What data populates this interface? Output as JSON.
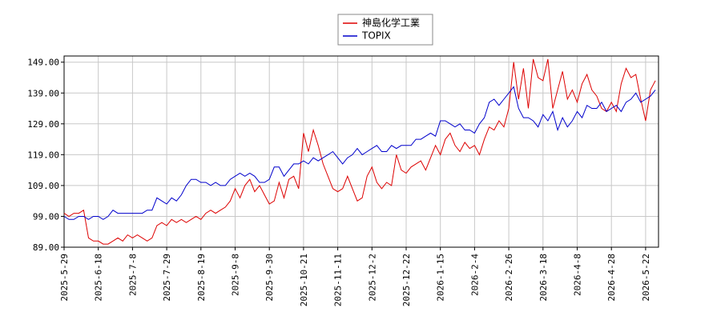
{
  "chart_data": {
    "type": "line",
    "categories": [
      "2025-5-29",
      null,
      null,
      null,
      null,
      null,
      null,
      "2025-6-18",
      null,
      null,
      null,
      null,
      null,
      null,
      "2025-7-8",
      null,
      null,
      null,
      null,
      null,
      null,
      "2025-7-29",
      null,
      null,
      null,
      null,
      null,
      null,
      "2025-8-19",
      null,
      null,
      null,
      null,
      null,
      null,
      "2025-9-8",
      null,
      null,
      null,
      null,
      null,
      null,
      "2025-9-30",
      null,
      null,
      null,
      null,
      null,
      null,
      "2025-10-21",
      null,
      null,
      null,
      null,
      null,
      null,
      "2025-11-11",
      null,
      null,
      null,
      null,
      null,
      null,
      "2025-12-2",
      null,
      null,
      null,
      null,
      null,
      null,
      "2025-12-22",
      null,
      null,
      null,
      null,
      null,
      null,
      "2026-1-15",
      null,
      null,
      null,
      null,
      null,
      null,
      "2026-2-4",
      null,
      null,
      null,
      null,
      null,
      null,
      "2026-2-26",
      null,
      null,
      null,
      null,
      null,
      null,
      "2026-3-18",
      null,
      null,
      null,
      null,
      null,
      null,
      "2026-4-8",
      null,
      null,
      null,
      null,
      null,
      null,
      "2026-4-28",
      null,
      null,
      null,
      null,
      null,
      null,
      "2026-5-22",
      null,
      null
    ],
    "series": [
      {
        "name": "神島化学工業",
        "color": "#dd0000",
        "values": [
          100,
          99,
          100,
          100,
          101,
          92,
          91,
          91,
          90,
          90,
          91,
          92,
          91,
          93,
          92,
          93,
          92,
          91,
          92,
          96,
          97,
          96,
          98,
          97,
          98,
          97,
          98,
          99,
          98,
          100,
          101,
          100,
          101,
          102,
          104,
          108,
          105,
          109,
          111,
          107,
          109,
          106,
          103,
          104,
          110,
          105,
          111,
          112,
          108,
          126,
          120,
          127,
          122,
          116,
          112,
          108,
          107,
          108,
          112,
          108,
          104,
          105,
          112,
          115,
          110,
          108,
          110,
          109,
          119,
          114,
          113,
          115,
          116,
          117,
          114,
          118,
          122,
          119,
          124,
          126,
          122,
          120,
          123,
          121,
          122,
          119,
          124,
          128,
          127,
          130,
          128,
          134,
          149,
          137,
          147,
          134,
          150,
          144,
          143,
          150,
          134,
          140,
          146,
          137,
          140,
          136,
          142,
          145,
          140,
          138,
          134,
          133,
          136,
          133,
          142,
          147,
          144,
          145,
          137,
          130,
          140,
          143
        ]
      },
      {
        "name": "TOPIX",
        "color": "#0000cc",
        "values": [
          99,
          98,
          98,
          99,
          99,
          98,
          99,
          99,
          98,
          99,
          101,
          100,
          100,
          100,
          100,
          100,
          100,
          101,
          101,
          105,
          104,
          103,
          105,
          104,
          106,
          109,
          111,
          111,
          110,
          110,
          109,
          110,
          109,
          109,
          111,
          112,
          113,
          112,
          113,
          112,
          110,
          110,
          111,
          115,
          115,
          112,
          114,
          116,
          116,
          117,
          116,
          118,
          117,
          118,
          119,
          120,
          118,
          116,
          118,
          119,
          121,
          119,
          120,
          121,
          122,
          120,
          120,
          122,
          121,
          122,
          122,
          122,
          124,
          124,
          125,
          126,
          125,
          130,
          130,
          129,
          128,
          129,
          127,
          127,
          126,
          129,
          131,
          136,
          137,
          135,
          137,
          139,
          141,
          134,
          131,
          131,
          130,
          128,
          132,
          130,
          133,
          127,
          131,
          128,
          130,
          133,
          131,
          135,
          134,
          134,
          136,
          133,
          134,
          135,
          133,
          136,
          137,
          139,
          136,
          137,
          138,
          140
        ]
      }
    ],
    "ylim": [
      89,
      151
    ],
    "yticks": [
      {
        "value": 89,
        "label": "89.00"
      },
      {
        "value": 99,
        "label": "99.00"
      },
      {
        "value": 109,
        "label": "109.00"
      },
      {
        "value": 119,
        "label": "119.00"
      },
      {
        "value": 129,
        "label": "129.00"
      },
      {
        "value": 139,
        "label": "139.00"
      },
      {
        "value": 149,
        "label": "149.00"
      }
    ],
    "grid": true
  }
}
